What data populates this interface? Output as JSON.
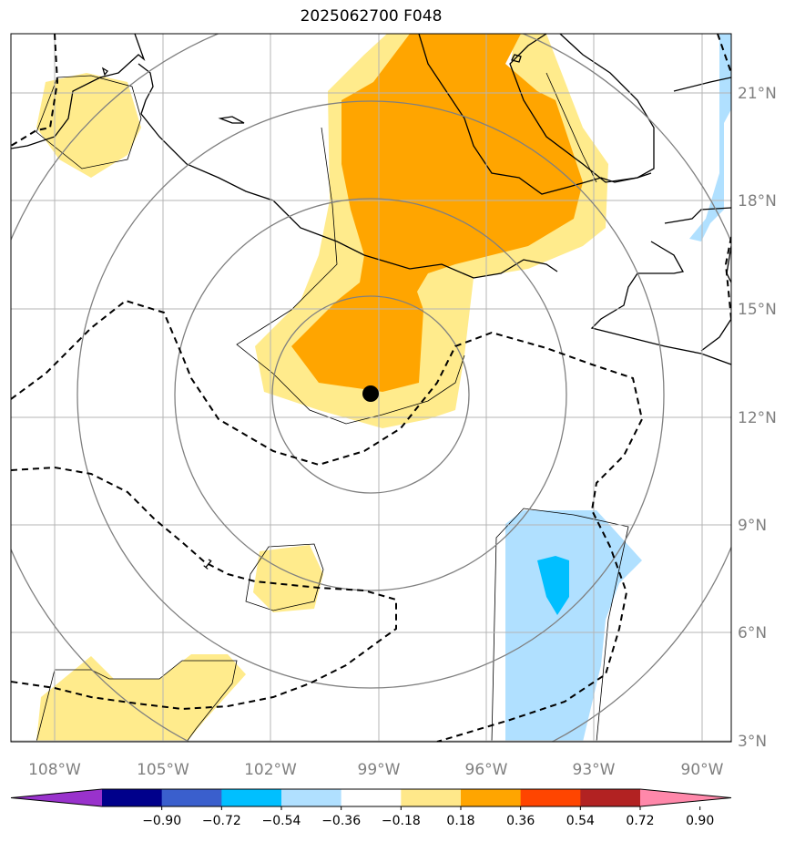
{
  "title": "2025062700 F048",
  "map": {
    "lon_ticks": [
      "108°W",
      "105°W",
      "102°W",
      "99°W",
      "96°W",
      "93°W",
      "90°W"
    ],
    "lat_ticks": [
      "21°N",
      "18°N",
      "15°N",
      "12°N",
      "9°N",
      "6°N",
      "3°N"
    ],
    "contour_label": "1",
    "center_marker": "storm-center"
  },
  "colorbar": {
    "levels": [
      "−0.90",
      "−0.72",
      "−0.54",
      "−0.36",
      "−0.18",
      "0.18",
      "0.36",
      "0.54",
      "0.72",
      "0.90"
    ],
    "colors": [
      "#9932cc",
      "#00008b",
      "#3a5fcd",
      "#00bfff",
      "#b0e0ff",
      "#ffffff",
      "#ffe88a",
      "#ffa500",
      "#ff4500",
      "#b22222",
      "#ff88aa"
    ]
  },
  "fill_colors": {
    "light_yellow": "#ffeb8c",
    "orange": "#ffa500",
    "light_blue": "#b0e0ff",
    "deep_sky_blue": "#00bfff"
  }
}
